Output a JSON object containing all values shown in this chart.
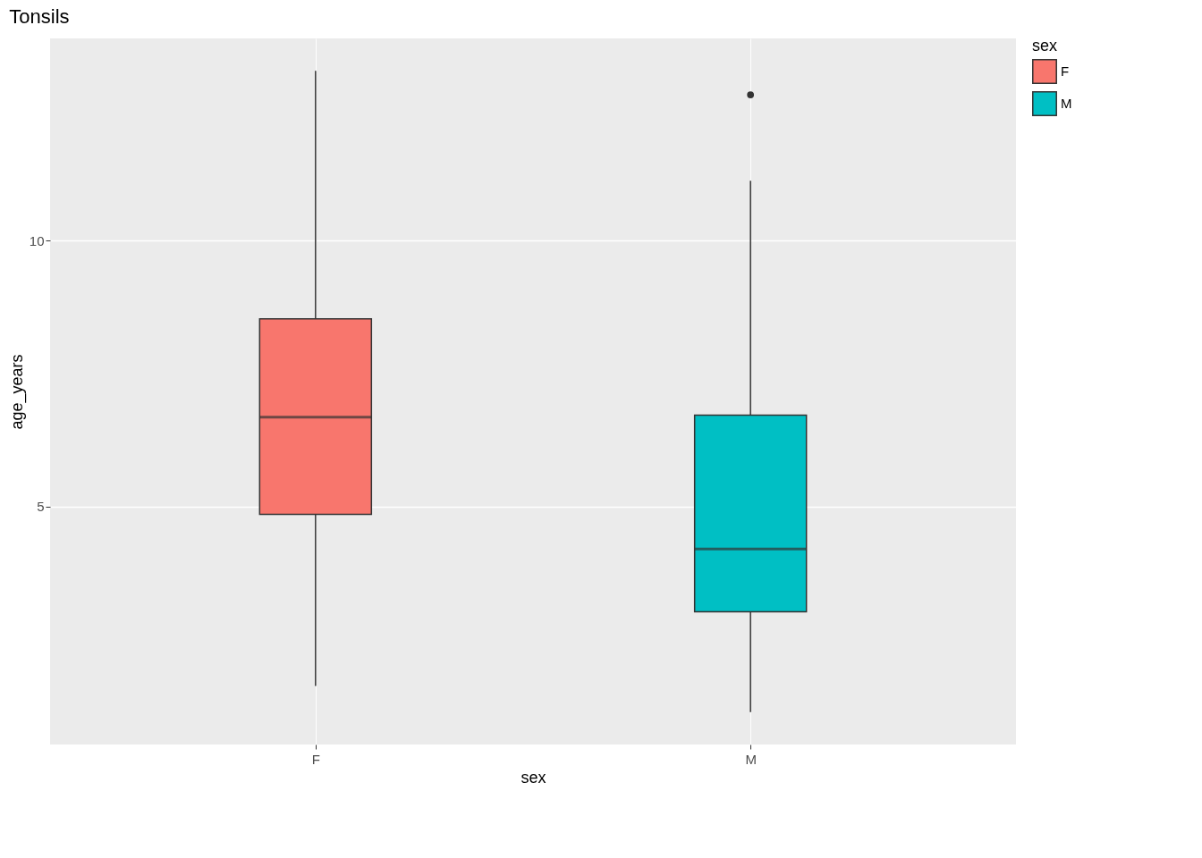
{
  "chart_data": {
    "type": "box",
    "title": "Tonsils",
    "xlabel": "sex",
    "ylabel": "age_years",
    "legend_title": "sex",
    "categories": [
      "F",
      "M"
    ],
    "series": [
      {
        "name": "F",
        "color": "#f8766d",
        "boxes": [
          {
            "low": 1.62,
            "q1": 4.85,
            "median": 6.68,
            "q3": 8.53,
            "high": 13.2
          },
          null
        ]
      },
      {
        "name": "M",
        "color": "#00bfc4",
        "boxes": [
          null,
          {
            "low": 1.13,
            "q1": 3.02,
            "median": 4.2,
            "q3": 6.72,
            "high": 11.13,
            "outliers": [
              12.75
            ]
          }
        ]
      }
    ],
    "ylim": [
      0.52,
      13.81
    ],
    "yticks": [
      5,
      10
    ],
    "grid": true,
    "legend": "right"
  }
}
